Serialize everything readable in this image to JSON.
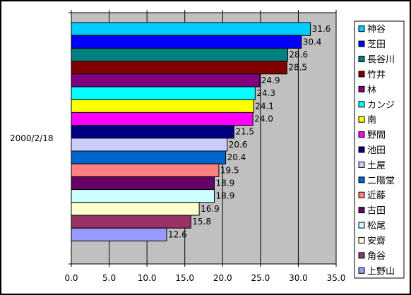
{
  "chart_data": {
    "type": "bar",
    "orientation": "horizontal",
    "category": "2000/2/18",
    "xlim": [
      0,
      35
    ],
    "xticks": [
      "0.0",
      "5.0",
      "10.0",
      "15.0",
      "20.0",
      "25.0",
      "30.0",
      "35.0"
    ],
    "grid": true,
    "plot_background": "#c0c0c0",
    "legend_position": "right",
    "series": [
      {
        "name": "神谷",
        "value": 31.6,
        "label": "31.6",
        "color": "#00ccff"
      },
      {
        "name": "芝田",
        "value": 30.4,
        "label": "30.4",
        "color": "#0000ff"
      },
      {
        "name": "長谷川",
        "value": 28.6,
        "label": "28.6",
        "color": "#008080"
      },
      {
        "name": "竹井",
        "value": 28.5,
        "label": "28.5",
        "color": "#800000"
      },
      {
        "name": "林",
        "value": 24.9,
        "label": "24.9",
        "color": "#800080"
      },
      {
        "name": "カンジ",
        "value": 24.3,
        "label": "24.3",
        "color": "#00ffff"
      },
      {
        "name": "南",
        "value": 24.1,
        "label": "24.1",
        "color": "#ffff00"
      },
      {
        "name": "野間",
        "value": 24.0,
        "label": "24.0",
        "color": "#ff00ff"
      },
      {
        "name": "池田",
        "value": 21.5,
        "label": "21.5",
        "color": "#000080"
      },
      {
        "name": "土屋",
        "value": 20.6,
        "label": "20.6",
        "color": "#ccccff"
      },
      {
        "name": "二階堂",
        "value": 20.4,
        "label": "20.4",
        "color": "#0066cc"
      },
      {
        "name": "近藤",
        "value": 19.5,
        "label": "19.5",
        "color": "#ff8080"
      },
      {
        "name": "古田",
        "value": 18.9,
        "label": "18.9",
        "color": "#660066"
      },
      {
        "name": "松尾",
        "value": 18.9,
        "label": "18.9",
        "color": "#ccffff"
      },
      {
        "name": "安齋",
        "value": 16.9,
        "label": "16.9",
        "color": "#ffffcc"
      },
      {
        "name": "角谷",
        "value": 15.8,
        "label": "15.8",
        "color": "#993366"
      },
      {
        "name": "上野山",
        "value": 12.6,
        "label": "12.6",
        "color": "#9999ff"
      }
    ]
  }
}
